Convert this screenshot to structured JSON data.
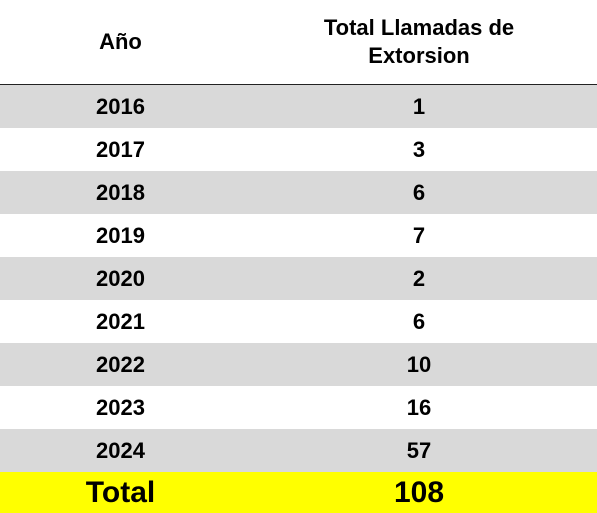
{
  "chart_data": {
    "type": "table",
    "headers": [
      "Año",
      "Total Llamadas de Extorsion"
    ],
    "rows": [
      {
        "year": "2016",
        "total": "1"
      },
      {
        "year": "2017",
        "total": "3"
      },
      {
        "year": "2018",
        "total": "6"
      },
      {
        "year": "2019",
        "total": "7"
      },
      {
        "year": "2020",
        "total": "2"
      },
      {
        "year": "2021",
        "total": "6"
      },
      {
        "year": "2022",
        "total": "10"
      },
      {
        "year": "2023",
        "total": "16"
      },
      {
        "year": "2024",
        "total": "57"
      }
    ],
    "total_label": "Total",
    "total_value": "108",
    "colors": {
      "shaded_row": "#d9d9d9",
      "plain_row": "#ffffff",
      "total_row": "#ffff00",
      "text": "#000000"
    }
  }
}
